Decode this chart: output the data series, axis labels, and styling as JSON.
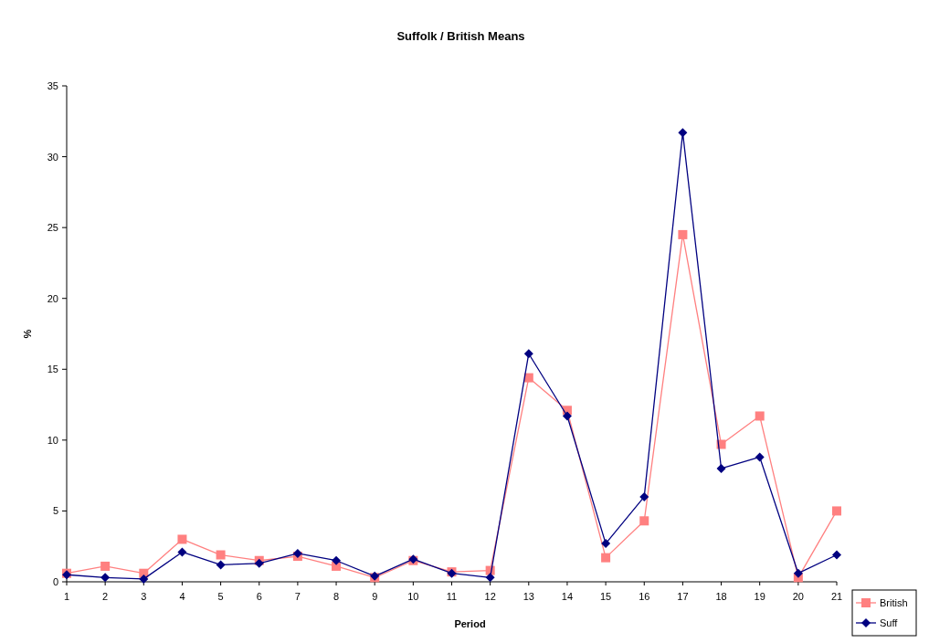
{
  "chart_data": {
    "type": "line",
    "title": "Suffolk / British  Means",
    "xlabel": "Period",
    "ylabel": "%",
    "x": [
      1,
      2,
      3,
      4,
      5,
      6,
      7,
      8,
      9,
      10,
      11,
      12,
      13,
      14,
      15,
      16,
      17,
      18,
      19,
      20,
      21
    ],
    "xlim": [
      1,
      21
    ],
    "xticks": [
      1,
      2,
      3,
      4,
      5,
      6,
      7,
      8,
      9,
      10,
      11,
      12,
      13,
      14,
      15,
      16,
      17,
      18,
      19,
      20,
      21
    ],
    "series": [
      {
        "name": "British",
        "color": "#ff8080",
        "marker": "square",
        "values": [
          0.6,
          1.1,
          0.6,
          3.0,
          1.9,
          1.5,
          1.8,
          1.1,
          0.3,
          1.5,
          0.7,
          0.8,
          14.4,
          12.1,
          1.7,
          4.3,
          24.5,
          9.7,
          11.7,
          0.3,
          5.0
        ]
      },
      {
        "name": "Suff",
        "color": "#000080",
        "marker": "diamond",
        "values": [
          0.5,
          0.3,
          0.2,
          2.1,
          1.2,
          1.3,
          2.0,
          1.5,
          0.4,
          1.6,
          0.6,
          0.3,
          16.1,
          11.7,
          2.7,
          6.0,
          31.7,
          8.0,
          8.8,
          0.6,
          1.9
        ]
      }
    ],
    "ylim": [
      0,
      35
    ],
    "yticks": [
      0,
      5,
      10,
      15,
      20,
      25,
      30,
      35
    ],
    "grid": false,
    "legend": "bottom right",
    "line_style": "solid"
  }
}
